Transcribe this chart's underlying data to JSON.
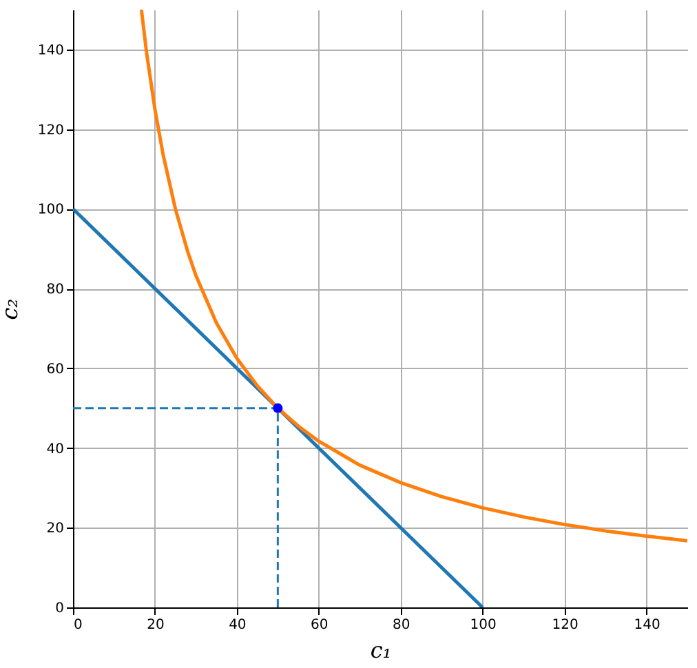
{
  "chart_data": {
    "type": "line",
    "xlabel": "c₁",
    "ylabel": "c₂",
    "xlim": [
      0,
      150
    ],
    "ylim": [
      0,
      150
    ],
    "xticks": [
      0,
      20,
      40,
      60,
      80,
      100,
      120,
      140
    ],
    "yticks": [
      0,
      20,
      40,
      60,
      80,
      100,
      120,
      140
    ],
    "grid": true,
    "series": [
      {
        "color": "#1f77b4",
        "x": [
          0,
          100
        ],
        "values": [
          100,
          0
        ],
        "line_style": "solid"
      },
      {
        "color": "#ff7f0e",
        "x": [
          16.7,
          18,
          20,
          22,
          25,
          28,
          30,
          35,
          40,
          45,
          50,
          55,
          60,
          70,
          80,
          90,
          100,
          110,
          120,
          130,
          140,
          150
        ],
        "values": [
          150,
          138.9,
          125,
          113.6,
          100,
          89.3,
          83.3,
          71.4,
          62.5,
          55.6,
          50,
          45.5,
          41.7,
          35.7,
          31.3,
          27.8,
          25,
          22.7,
          20.8,
          19.2,
          17.9,
          16.7
        ],
        "line_style": "solid"
      },
      {
        "color": "#1f77b4",
        "x": [
          0,
          50
        ],
        "values": [
          50,
          50
        ],
        "line_style": "dashed"
      },
      {
        "color": "#1f77b4",
        "x": [
          50,
          50
        ],
        "values": [
          0,
          50
        ],
        "line_style": "dashed"
      },
      {
        "type": "scatter",
        "color": "#0000ff",
        "x": [
          50
        ],
        "values": [
          50
        ],
        "marker": "circle"
      }
    ]
  }
}
